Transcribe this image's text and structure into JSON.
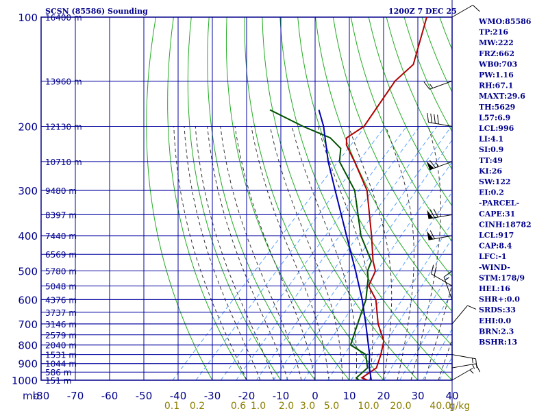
{
  "title": "SCSN (85586) Sounding",
  "valid_time": "1200Z  7 DEC 25",
  "colors": {
    "frame": "#00008b",
    "grid": "#0000a0",
    "dry_adiabat": "#22aa22",
    "moist_adiabat": "#333333",
    "mixing_ratio": "#5aa0ff",
    "temperature": "#b00000",
    "dewpoint": "#005000",
    "parcel": "#0000b0",
    "mixing_ratio_label": "#8b7d00"
  },
  "indices": [
    "WMO:85586",
    "TP:216",
    "MW:222",
    "FRZ:662",
    "WB0:703",
    "PW:1.16",
    "RH:67.1",
    "MAXT:29.6",
    "TH:5629",
    "L57:6.9",
    "LCL:996",
    "LI:4.1",
    "SI:0.9",
    "TT:49",
    "KI:26",
    "SW:122",
    "EI:0.2",
    "-PARCEL-",
    "CAPE:31",
    "CINH:18782",
    "LCL:917",
    "CAP:8.4",
    "LFC:-1",
    "-WIND-",
    "STM:178/9",
    "HEL:16",
    "SHR+:0.0",
    "SRDS:33",
    "EHI:0.0",
    "BRN:2.3",
    "BSHR:13"
  ],
  "pressure_labels": [
    "100",
    "200",
    "300",
    "400",
    "500",
    "600",
    "700",
    "800",
    "900",
    "1000"
  ],
  "pressure_unit": "mb",
  "temperature_labels": [
    "-80",
    "-70",
    "-60",
    "-50",
    "-40",
    "-30",
    "-20",
    "-10",
    "0",
    "10",
    "20",
    "30",
    "40"
  ],
  "mixing_ratio_labels": [
    "0.1",
    "0.2",
    "0.6",
    "1.0",
    "2.0",
    "3.0",
    "5.0",
    "10.0",
    "20.0",
    "40.0",
    "g/kg"
  ],
  "height_labels": [
    "16400 m",
    "13960 m",
    "12130 m",
    "10710 m",
    "9480 m",
    "8397 m",
    "7440 m",
    "6569 m",
    "5780 m",
    "5048 m",
    "4376 m",
    "3737 m",
    "3146 m",
    "2579 m",
    "2040 m",
    "1531 m",
    "1044 m",
    "586 m",
    "151 m"
  ],
  "chart_data": {
    "type": "line",
    "title": "SCSN (85586) Sounding",
    "subtitle": "1200Z  7 DEC 25",
    "xlabel": "",
    "ylabel": "mb",
    "y_scale": "log",
    "ylim": [
      1000,
      100
    ],
    "xlim": [
      -80,
      40
    ],
    "x_ticks": [
      -80,
      -70,
      -60,
      -50,
      -40,
      -30,
      -20,
      -10,
      0,
      10,
      20,
      30,
      40
    ],
    "y_ticks": [
      100,
      200,
      300,
      400,
      500,
      600,
      700,
      800,
      900,
      1000
    ],
    "grid": true,
    "series": [
      {
        "key": "temperature",
        "points": [
          {
            "p": 1000,
            "t": 15.3
          },
          {
            "p": 985,
            "t": 13.0
          },
          {
            "p": 925,
            "t": 14.5
          },
          {
            "p": 850,
            "t": 12.1
          },
          {
            "p": 780,
            "t": 9.2
          },
          {
            "p": 700,
            "t": 2.8
          },
          {
            "p": 600,
            "t": -4.6
          },
          {
            "p": 550,
            "t": -10.5
          },
          {
            "p": 500,
            "t": -12.7
          },
          {
            "p": 470,
            "t": -16.1
          },
          {
            "p": 400,
            "t": -23.6
          },
          {
            "p": 300,
            "t": -37.5
          },
          {
            "p": 250,
            "t": -49.1
          },
          {
            "p": 225,
            "t": -56.1
          },
          {
            "p": 215,
            "t": -58.0
          },
          {
            "p": 200,
            "t": -56.1
          },
          {
            "p": 150,
            "t": -59.6
          },
          {
            "p": 135,
            "t": -58.9
          },
          {
            "p": 100,
            "t": -68.1
          }
        ]
      },
      {
        "key": "dewpoint",
        "points": [
          {
            "p": 1000,
            "t": 12.8
          },
          {
            "p": 985,
            "t": 11.4
          },
          {
            "p": 925,
            "t": 11.9
          },
          {
            "p": 850,
            "t": 7.7
          },
          {
            "p": 800,
            "t": 0.6
          },
          {
            "p": 700,
            "t": -3.2
          },
          {
            "p": 600,
            "t": -7.5
          },
          {
            "p": 525,
            "t": -12.7
          },
          {
            "p": 500,
            "t": -15.0
          },
          {
            "p": 470,
            "t": -16.6
          },
          {
            "p": 400,
            "t": -26.7
          },
          {
            "p": 300,
            "t": -41.1
          },
          {
            "p": 250,
            "t": -53.5
          },
          {
            "p": 230,
            "t": -56.8
          },
          {
            "p": 215,
            "t": -62.8
          },
          {
            "p": 200,
            "t": -73.9
          },
          {
            "p": 180,
            "t": -88.2
          }
        ]
      },
      {
        "key": "parcel",
        "points": [
          {
            "p": 1000,
            "t": 16.4
          },
          {
            "p": 917,
            "t": 12.0
          },
          {
            "p": 850,
            "t": 8.8
          },
          {
            "p": 700,
            "t": -0.8
          },
          {
            "p": 600,
            "t": -8.6
          },
          {
            "p": 500,
            "t": -18.5
          },
          {
            "p": 400,
            "t": -30.9
          },
          {
            "p": 300,
            "t": -46.8
          },
          {
            "p": 250,
            "t": -56.8
          },
          {
            "p": 200,
            "t": -67.9
          },
          {
            "p": 180,
            "t": -73.9
          }
        ]
      }
    ],
    "wind_barbs": [
      {
        "p": 1000,
        "dir": 60,
        "kt": 5
      },
      {
        "p": 925,
        "dir": 80,
        "kt": 15
      },
      {
        "p": 850,
        "dir": 100,
        "kt": 15
      },
      {
        "p": 700,
        "dir": 40,
        "kt": 10
      },
      {
        "p": 600,
        "dir": 340,
        "kt": 15
      },
      {
        "p": 550,
        "dir": 300,
        "kt": 20
      },
      {
        "p": 400,
        "dir": 260,
        "kt": 60
      },
      {
        "p": 350,
        "dir": 260,
        "kt": 70
      },
      {
        "p": 250,
        "dir": 250,
        "kt": 65
      },
      {
        "p": 200,
        "dir": 280,
        "kt": 40
      },
      {
        "p": 150,
        "dir": 250,
        "kt": 15
      },
      {
        "p": 100,
        "dir": 60,
        "kt": 10
      }
    ]
  }
}
